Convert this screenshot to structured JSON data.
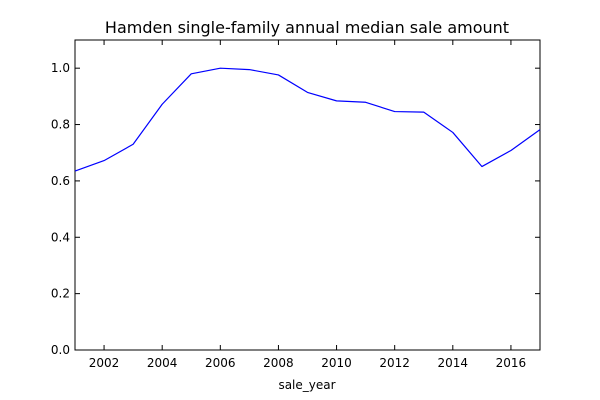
{
  "chart_data": {
    "type": "line",
    "title": "Hamden single-family annual median sale amount",
    "xlabel": "sale_year",
    "ylabel": "",
    "xlim": [
      2001,
      2017
    ],
    "ylim": [
      0.0,
      1.1
    ],
    "grid": false,
    "legend": "none",
    "x_ticks": [
      2002,
      2004,
      2006,
      2008,
      2010,
      2012,
      2014,
      2016
    ],
    "x_tick_labels": [
      "2002",
      "2004",
      "2006",
      "2008",
      "2010",
      "2012",
      "2014",
      "2016"
    ],
    "y_ticks": [
      0.0,
      0.2,
      0.4,
      0.6,
      0.8,
      1.0
    ],
    "y_tick_labels": [
      "0.0",
      "0.2",
      "0.4",
      "0.6",
      "0.8",
      "1.0"
    ],
    "series": [
      {
        "color": "#0000ff",
        "x": [
          2001,
          2002,
          2003,
          2004,
          2005,
          2006,
          2007,
          2008,
          2009,
          2010,
          2011,
          2012,
          2013,
          2014,
          2015,
          2016,
          2017
        ],
        "values": [
          0.635,
          0.672,
          0.73,
          0.872,
          0.98,
          1.0,
          0.995,
          0.976,
          0.914,
          0.884,
          0.879,
          0.846,
          0.844,
          0.772,
          0.651,
          0.708,
          0.782
        ]
      }
    ]
  }
}
